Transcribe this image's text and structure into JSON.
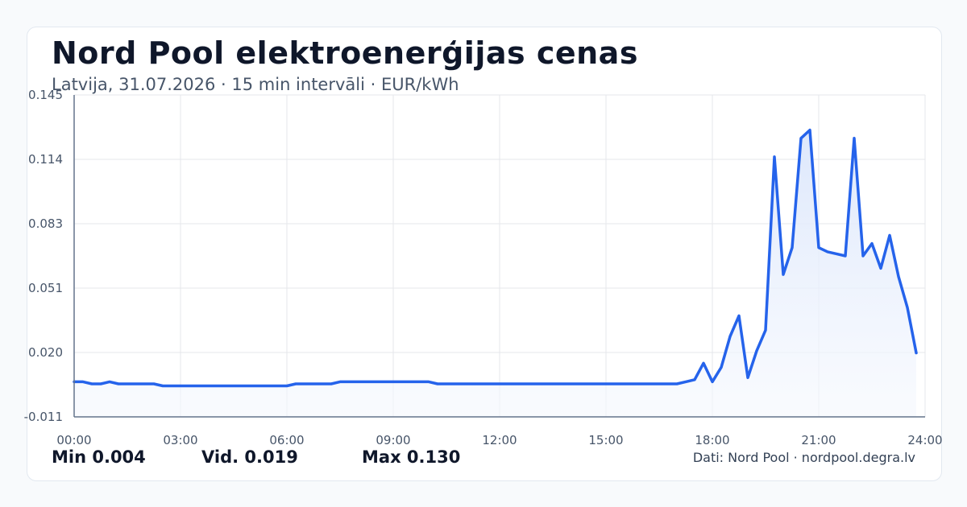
{
  "header": {
    "title": "Nord Pool elektroenerģijas cenas",
    "subtitle": "Latvija, 31.07.2026 · 15 min intervāli · EUR/kWh"
  },
  "footer": {
    "stat_min": "Min 0.004",
    "stat_avg": "Vid. 0.019",
    "stat_max": "Max 0.130",
    "source": "Dati: Nord Pool · nordpool.degra.lv"
  },
  "colors": {
    "line": "#2563eb",
    "fill_top": "#dbe6fb",
    "grid": "#e5e7eb",
    "axis": "#64748b",
    "tick_text": "#475569"
  },
  "chart_data": {
    "type": "area",
    "unit": "EUR/kWh",
    "x_ticks": [
      "00:00",
      "03:00",
      "06:00",
      "09:00",
      "12:00",
      "15:00",
      "18:00",
      "21:00",
      "24:00"
    ],
    "y_ticks": [
      "-0.011",
      "0.020",
      "0.051",
      "0.083",
      "0.114",
      "0.145"
    ],
    "xlim": [
      0,
      24
    ],
    "ylim": [
      -0.011,
      0.145
    ],
    "grid": true,
    "series": [
      {
        "x": [
          0,
          0.25,
          0.5,
          0.75,
          1.0,
          1.25,
          1.5,
          1.75,
          2.0,
          2.25,
          2.5,
          2.75,
          3.0,
          3.5,
          4.0,
          4.5,
          5.0,
          5.5,
          6.0,
          6.25,
          6.5,
          6.75,
          7.0,
          7.25,
          7.5,
          7.75,
          8.0,
          8.5,
          9.0,
          9.5,
          10.0,
          10.25,
          10.5,
          11.0,
          12.0,
          13.0,
          14.0,
          15.0,
          16.0,
          16.5,
          17.0,
          17.25,
          17.5,
          17.75,
          18.0,
          18.25,
          18.5,
          18.75,
          19.0,
          19.25,
          19.5,
          19.75,
          20.0,
          20.25,
          20.5,
          20.75,
          21.0,
          21.25,
          21.5,
          21.75,
          22.0,
          22.25,
          22.5,
          22.75,
          23.0,
          23.25,
          23.5,
          23.75
        ],
        "y": [
          0.006,
          0.006,
          0.005,
          0.005,
          0.006,
          0.005,
          0.005,
          0.005,
          0.005,
          0.005,
          0.004,
          0.004,
          0.004,
          0.004,
          0.004,
          0.004,
          0.004,
          0.004,
          0.004,
          0.005,
          0.005,
          0.005,
          0.005,
          0.005,
          0.006,
          0.006,
          0.006,
          0.006,
          0.006,
          0.006,
          0.006,
          0.005,
          0.005,
          0.005,
          0.005,
          0.005,
          0.005,
          0.005,
          0.005,
          0.005,
          0.005,
          0.006,
          0.007,
          0.015,
          0.006,
          0.013,
          0.028,
          0.038,
          0.008,
          0.021,
          0.031,
          0.115,
          0.058,
          0.071,
          0.124,
          0.128,
          0.071,
          0.069,
          0.068,
          0.067,
          0.124,
          0.067,
          0.073,
          0.061,
          0.077,
          0.057,
          0.042,
          0.02
        ]
      }
    ]
  }
}
